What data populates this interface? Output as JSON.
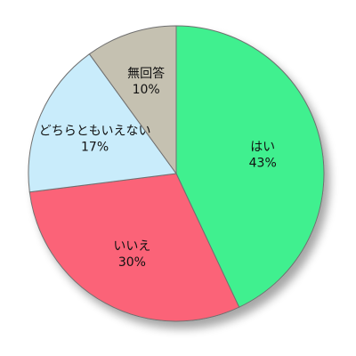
{
  "chart_data": {
    "type": "pie",
    "start_angle_deg": 0,
    "direction": "clockwise",
    "slices": [
      {
        "label": "はい",
        "percent_label": "43%",
        "value": 43,
        "color": "#41f08f"
      },
      {
        "label": "いいえ",
        "percent_label": "30%",
        "value": 30,
        "color": "#fb6478"
      },
      {
        "label": "どちらともいえない",
        "percent_label": "17%",
        "value": 17,
        "color": "#c9ecfb"
      },
      {
        "label": "無回答",
        "percent_label": "10%",
        "value": 10,
        "color": "#c5c1b1"
      }
    ]
  }
}
